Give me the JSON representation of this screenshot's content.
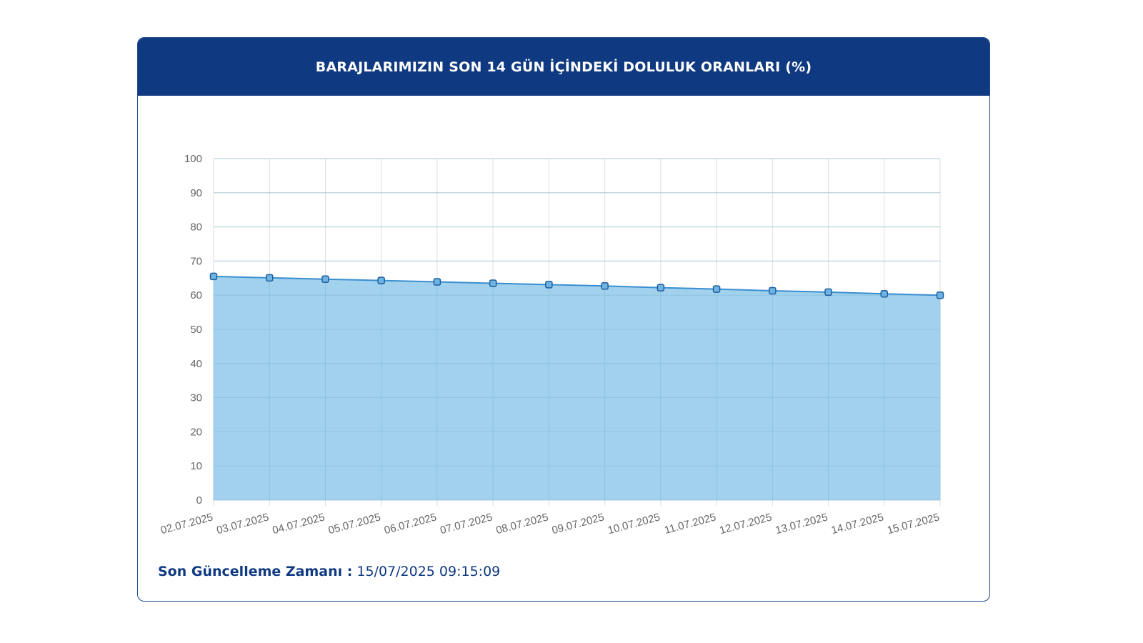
{
  "card": {
    "title": "BARAJLARIMIZIN SON 14 GÜN İÇİNDEKİ DOLULUK ORANLARI (%)",
    "update_label": "Son Güncelleme Zamanı :",
    "update_value": "15/07/2025 09:15:09"
  },
  "colors": {
    "header_bg": "#0f3981",
    "area_fill": "#9ccfec",
    "line": "#3a8fd0",
    "grid": "#dddddd"
  },
  "chart_data": {
    "type": "area",
    "categories": [
      "02.07.2025",
      "03.07.2025",
      "04.07.2025",
      "05.07.2025",
      "06.07.2025",
      "07.07.2025",
      "08.07.2025",
      "09.07.2025",
      "10.07.2025",
      "11.07.2025",
      "12.07.2025",
      "13.07.2025",
      "14.07.2025",
      "15.07.2025"
    ],
    "series": [
      {
        "values": [
          65.5,
          65.1,
          64.7,
          64.3,
          63.9,
          63.5,
          63.1,
          62.7,
          62.2,
          61.8,
          61.3,
          60.9,
          60.4,
          60.0
        ]
      }
    ],
    "ylim": [
      0,
      100
    ],
    "yticks": [
      0,
      10,
      20,
      30,
      40,
      50,
      60,
      70,
      80,
      90,
      100
    ],
    "grid": true,
    "legend": "none"
  }
}
